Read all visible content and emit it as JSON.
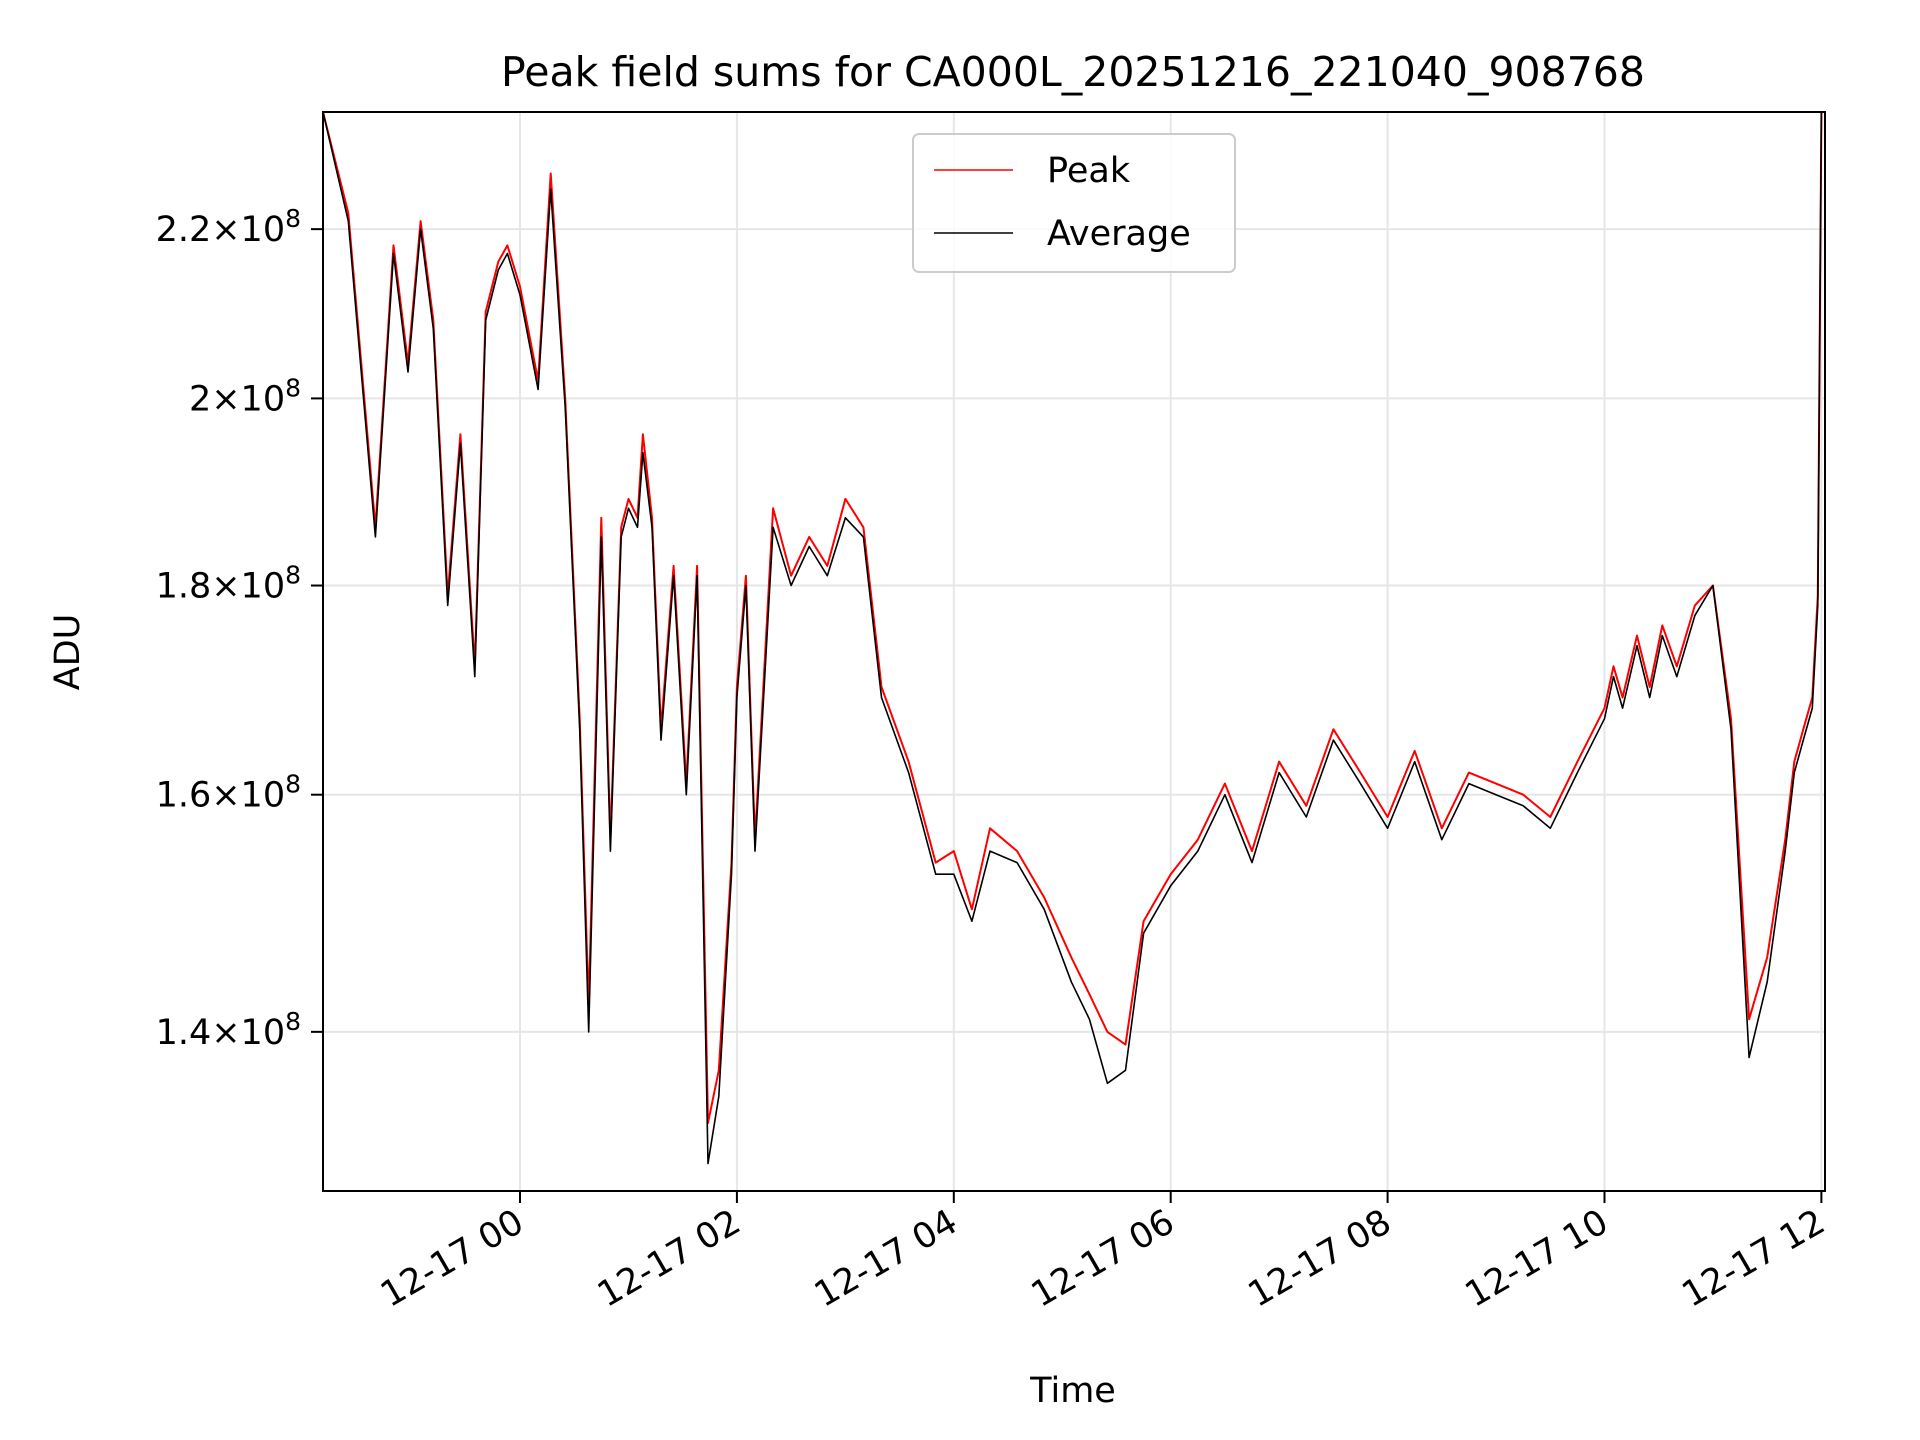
{
  "chart_data": {
    "type": "line",
    "title": "Peak field sums for CA000L_20251216_221040_908768",
    "xlabel": "Time",
    "ylabel": "ADU",
    "y_scale": "log",
    "grid": true,
    "legend_position": "upper center",
    "x_range": [
      "2025-12-16 22:11",
      "2025-12-17 12:02"
    ],
    "ylim": [
      128000000,
      235000000
    ],
    "x_tick_labels": [
      "12-17 00",
      "12-17 02",
      "12-17 04",
      "12-17 06",
      "12-17 08",
      "12-17 10",
      "12-17 12"
    ],
    "x_tick_values": [
      "2025-12-17 00:00",
      "2025-12-17 02:00",
      "2025-12-17 04:00",
      "2025-12-17 06:00",
      "2025-12-17 08:00",
      "2025-12-17 10:00",
      "2025-12-17 12:00"
    ],
    "y_tick_values": [
      140000000,
      160000000,
      180000000,
      200000000,
      220000000
    ],
    "y_tick_labels": [
      {
        "mantissa": "1.4",
        "exponent": "8"
      },
      {
        "mantissa": "1.6",
        "exponent": "8"
      },
      {
        "mantissa": "1.8",
        "exponent": "8"
      },
      {
        "mantissa": "2",
        "exponent": "8"
      },
      {
        "mantissa": "2.2",
        "exponent": "8"
      }
    ],
    "series": [
      {
        "name": "Peak",
        "color": "#ff0000",
        "x": [
          "2025-12-16 22:11",
          "2025-12-16 22:25",
          "2025-12-16 22:40",
          "2025-12-16 22:50",
          "2025-12-16 22:58",
          "2025-12-16 23:05",
          "2025-12-16 23:12",
          "2025-12-16 23:20",
          "2025-12-16 23:27",
          "2025-12-16 23:35",
          "2025-12-16 23:41",
          "2025-12-16 23:48",
          "2025-12-16 23:53",
          "2025-12-17 00:00",
          "2025-12-17 00:10",
          "2025-12-17 00:17",
          "2025-12-17 00:25",
          "2025-12-17 00:33",
          "2025-12-17 00:38",
          "2025-12-17 00:45",
          "2025-12-17 00:50",
          "2025-12-17 00:56",
          "2025-12-17 01:00",
          "2025-12-17 01:05",
          "2025-12-17 01:08",
          "2025-12-17 01:13",
          "2025-12-17 01:18",
          "2025-12-17 01:25",
          "2025-12-17 01:32",
          "2025-12-17 01:38",
          "2025-12-17 01:44",
          "2025-12-17 01:50",
          "2025-12-17 01:57",
          "2025-12-17 02:00",
          "2025-12-17 02:05",
          "2025-12-17 02:10",
          "2025-12-17 02:20",
          "2025-12-17 02:30",
          "2025-12-17 02:40",
          "2025-12-17 02:50",
          "2025-12-17 03:00",
          "2025-12-17 03:10",
          "2025-12-17 03:20",
          "2025-12-17 03:35",
          "2025-12-17 03:50",
          "2025-12-17 04:00",
          "2025-12-17 04:10",
          "2025-12-17 04:20",
          "2025-12-17 04:35",
          "2025-12-17 04:50",
          "2025-12-17 05:05",
          "2025-12-17 05:15",
          "2025-12-17 05:25",
          "2025-12-17 05:35",
          "2025-12-17 05:45",
          "2025-12-17 06:00",
          "2025-12-17 06:15",
          "2025-12-17 06:30",
          "2025-12-17 06:45",
          "2025-12-17 07:00",
          "2025-12-17 07:15",
          "2025-12-17 07:30",
          "2025-12-17 07:45",
          "2025-12-17 08:00",
          "2025-12-17 08:15",
          "2025-12-17 08:30",
          "2025-12-17 08:45",
          "2025-12-17 09:00",
          "2025-12-17 09:15",
          "2025-12-17 09:30",
          "2025-12-17 09:45",
          "2025-12-17 10:00",
          "2025-12-17 10:05",
          "2025-12-17 10:10",
          "2025-12-17 10:18",
          "2025-12-17 10:25",
          "2025-12-17 10:32",
          "2025-12-17 10:40",
          "2025-12-17 10:50",
          "2025-12-17 11:00",
          "2025-12-17 11:10",
          "2025-12-17 11:20",
          "2025-12-17 11:30",
          "2025-12-17 11:40",
          "2025-12-17 11:45",
          "2025-12-17 11:50",
          "2025-12-17 11:55",
          "2025-12-17 11:58",
          "2025-12-17 12:00"
        ],
        "y": [
          235000000,
          222000000,
          186000000,
          218000000,
          204000000,
          221000000,
          209000000,
          179000000,
          196000000,
          172000000,
          210000000,
          216000000,
          218000000,
          213000000,
          202000000,
          227000000,
          200000000,
          167000000,
          142000000,
          187000000,
          156000000,
          186000000,
          189000000,
          187000000,
          196000000,
          187000000,
          166000000,
          182000000,
          161000000,
          182000000,
          133000000,
          137000000,
          154000000,
          170000000,
          181000000,
          156000000,
          188000000,
          181000000,
          185000000,
          182000000,
          189000000,
          186000000,
          170000000,
          163000000,
          154000000,
          155000000,
          150000000,
          157000000,
          155000000,
          151000000,
          146000000,
          143000000,
          140000000,
          139000000,
          149000000,
          153000000,
          156000000,
          161000000,
          155000000,
          163000000,
          159000000,
          166000000,
          162000000,
          158000000,
          164000000,
          157000000,
          162000000,
          161000000,
          160000000,
          158000000,
          163000000,
          168000000,
          172000000,
          169000000,
          175000000,
          170000000,
          176000000,
          172000000,
          178000000,
          180000000,
          167000000,
          141000000,
          146000000,
          156000000,
          163000000,
          166000000,
          169000000,
          179000000,
          235000000
        ]
      },
      {
        "name": "Average",
        "color": "#000000",
        "x": [
          "2025-12-16 22:11",
          "2025-12-16 22:25",
          "2025-12-16 22:40",
          "2025-12-16 22:50",
          "2025-12-16 22:58",
          "2025-12-16 23:05",
          "2025-12-16 23:12",
          "2025-12-16 23:20",
          "2025-12-16 23:27",
          "2025-12-16 23:35",
          "2025-12-16 23:41",
          "2025-12-16 23:48",
          "2025-12-16 23:53",
          "2025-12-17 00:00",
          "2025-12-17 00:10",
          "2025-12-17 00:17",
          "2025-12-17 00:25",
          "2025-12-17 00:33",
          "2025-12-17 00:38",
          "2025-12-17 00:45",
          "2025-12-17 00:50",
          "2025-12-17 00:56",
          "2025-12-17 01:00",
          "2025-12-17 01:05",
          "2025-12-17 01:08",
          "2025-12-17 01:13",
          "2025-12-17 01:18",
          "2025-12-17 01:25",
          "2025-12-17 01:32",
          "2025-12-17 01:38",
          "2025-12-17 01:44",
          "2025-12-17 01:50",
          "2025-12-17 01:57",
          "2025-12-17 02:00",
          "2025-12-17 02:05",
          "2025-12-17 02:10",
          "2025-12-17 02:20",
          "2025-12-17 02:30",
          "2025-12-17 02:40",
          "2025-12-17 02:50",
          "2025-12-17 03:00",
          "2025-12-17 03:10",
          "2025-12-17 03:20",
          "2025-12-17 03:35",
          "2025-12-17 03:50",
          "2025-12-17 04:00",
          "2025-12-17 04:10",
          "2025-12-17 04:20",
          "2025-12-17 04:35",
          "2025-12-17 04:50",
          "2025-12-17 05:05",
          "2025-12-17 05:15",
          "2025-12-17 05:25",
          "2025-12-17 05:35",
          "2025-12-17 05:45",
          "2025-12-17 06:00",
          "2025-12-17 06:15",
          "2025-12-17 06:30",
          "2025-12-17 06:45",
          "2025-12-17 07:00",
          "2025-12-17 07:15",
          "2025-12-17 07:30",
          "2025-12-17 07:45",
          "2025-12-17 08:00",
          "2025-12-17 08:15",
          "2025-12-17 08:30",
          "2025-12-17 08:45",
          "2025-12-17 09:00",
          "2025-12-17 09:15",
          "2025-12-17 09:30",
          "2025-12-17 09:45",
          "2025-12-17 10:00",
          "2025-12-17 10:05",
          "2025-12-17 10:10",
          "2025-12-17 10:18",
          "2025-12-17 10:25",
          "2025-12-17 10:32",
          "2025-12-17 10:40",
          "2025-12-17 10:50",
          "2025-12-17 11:00",
          "2025-12-17 11:10",
          "2025-12-17 11:20",
          "2025-12-17 11:30",
          "2025-12-17 11:40",
          "2025-12-17 11:45",
          "2025-12-17 11:50",
          "2025-12-17 11:55",
          "2025-12-17 11:58",
          "2025-12-17 12:00"
        ],
        "y": [
          235000000,
          221000000,
          185000000,
          217000000,
          203000000,
          220000000,
          208000000,
          178000000,
          195000000,
          171000000,
          209000000,
          215000000,
          217000000,
          212000000,
          201000000,
          225000000,
          199000000,
          166000000,
          140000000,
          185000000,
          155000000,
          185000000,
          188000000,
          186000000,
          194000000,
          186000000,
          165000000,
          181000000,
          160000000,
          181000000,
          130000000,
          135000000,
          153000000,
          169000000,
          180000000,
          155000000,
          186000000,
          180000000,
          184000000,
          181000000,
          187000000,
          185000000,
          169000000,
          162000000,
          153000000,
          153000000,
          149000000,
          155000000,
          154000000,
          150000000,
          144000000,
          141000000,
          136000000,
          137000000,
          148000000,
          152000000,
          155000000,
          160000000,
          154000000,
          162000000,
          158000000,
          165000000,
          161000000,
          157000000,
          163000000,
          156000000,
          161000000,
          160000000,
          159000000,
          157000000,
          162000000,
          167000000,
          171000000,
          168000000,
          174000000,
          169000000,
          175000000,
          171000000,
          177000000,
          180000000,
          166000000,
          138000000,
          144000000,
          155000000,
          162000000,
          165000000,
          168000000,
          178000000,
          235000000
        ]
      }
    ]
  }
}
